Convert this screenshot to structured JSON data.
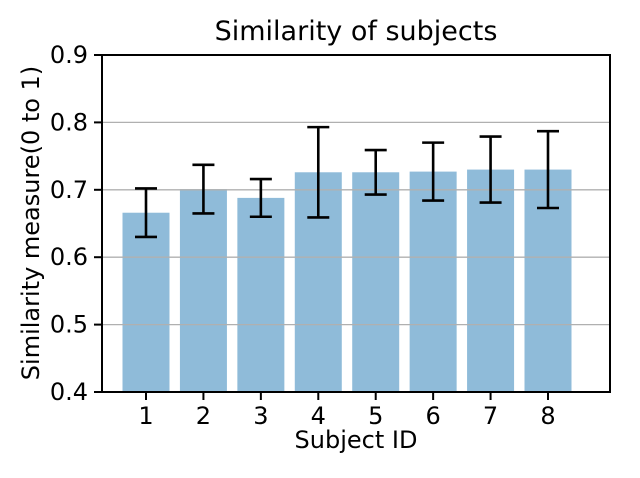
{
  "figure": {
    "background": "#ffffff"
  },
  "chart_data": {
    "type": "bar",
    "title": "Similarity of subjects",
    "xlabel": "Subject ID",
    "ylabel": "Similarity measure(0 to 1)",
    "categories": [
      "1",
      "2",
      "3",
      "4",
      "5",
      "6",
      "7",
      "8"
    ],
    "series": [
      {
        "name": "similarity",
        "values": [
          0.666,
          0.701,
          0.688,
          0.726,
          0.726,
          0.727,
          0.73,
          0.73
        ],
        "errors": [
          0.036,
          0.036,
          0.028,
          0.067,
          0.033,
          0.043,
          0.049,
          0.057
        ]
      }
    ],
    "ylim": [
      0.4,
      0.9
    ],
    "yticks": [
      0.4,
      0.5,
      0.6,
      0.7,
      0.8,
      0.9
    ],
    "ytick_labels": [
      "0.4",
      "0.5",
      "0.6",
      "0.7",
      "0.8",
      "0.9"
    ],
    "grid": true,
    "grid_over_bars": true,
    "legend": "none",
    "colors": {
      "bar_fill": "#8fbbd9",
      "bar_base": "#1f77b4",
      "bar_alpha": 0.5,
      "grid": "#b0b0b0",
      "error": "#000000",
      "spine": "#000000",
      "text": "#000000"
    }
  }
}
